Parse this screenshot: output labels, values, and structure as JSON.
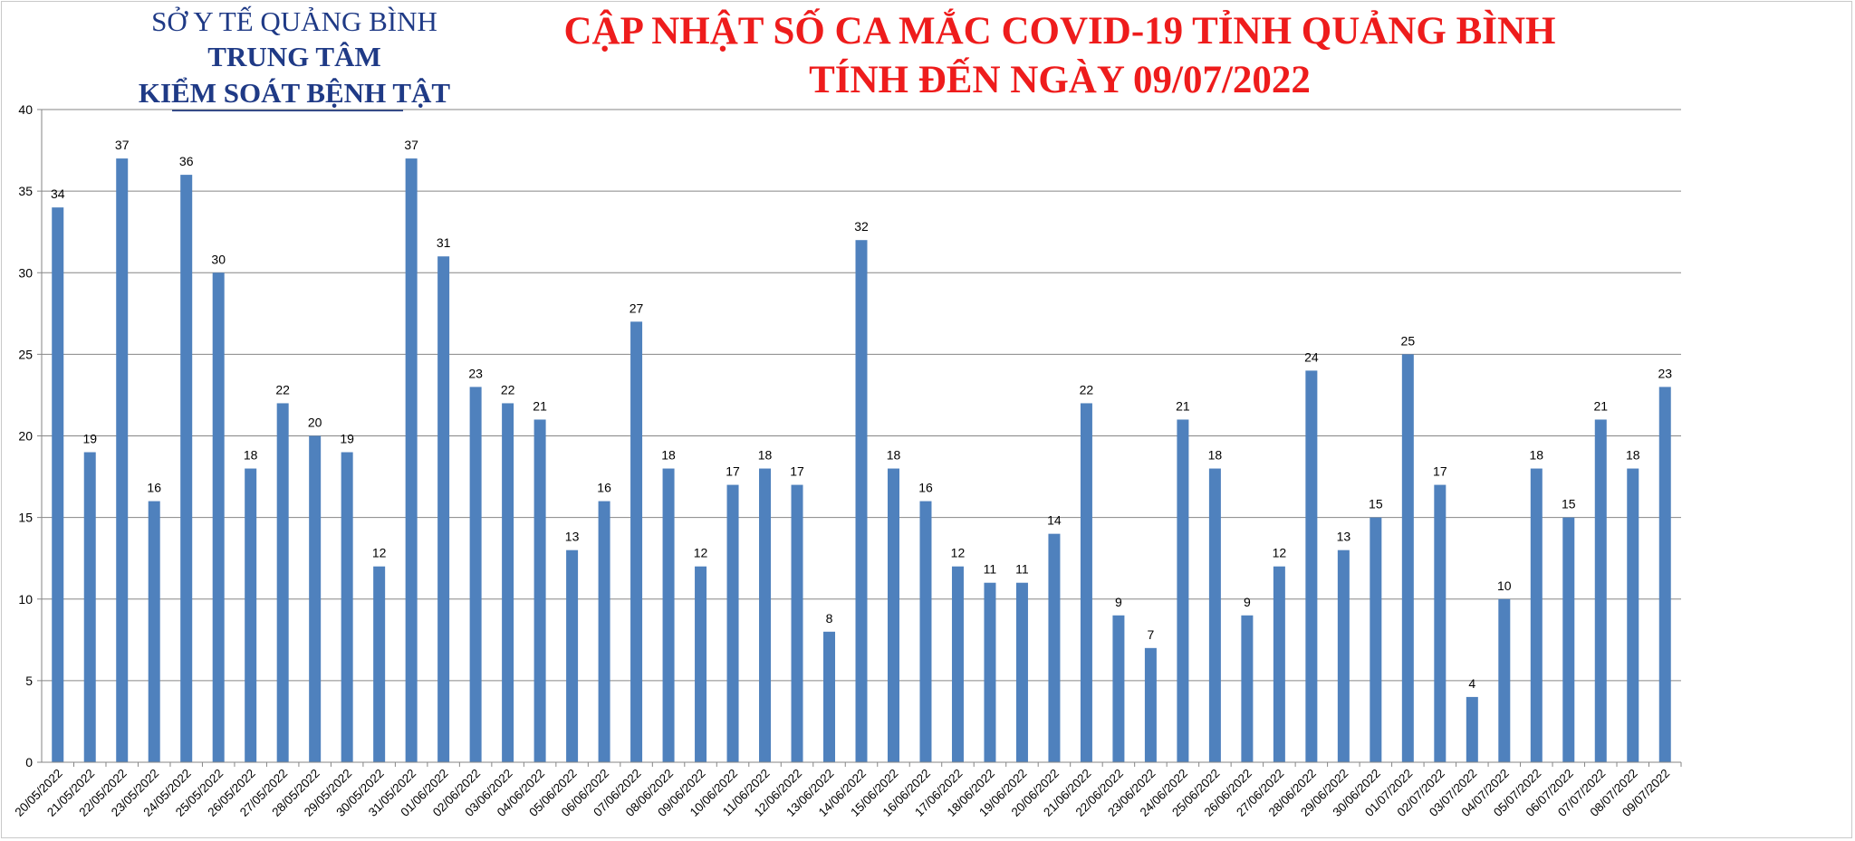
{
  "header": {
    "org_line1": "SỞ Y TẾ QUẢNG BÌNH",
    "org_line2": "TRUNG TÂM",
    "org_line3": "KIỂM SOÁT BỆNH TẬT",
    "title_line1": "CẬP NHẬT SỐ CA MẮC COVID-19 TỈNH QUẢNG BÌNH",
    "title_line2": "TÍNH ĐẾN NGÀY 09/07/2022"
  },
  "colors": {
    "bar": "#4f81bd",
    "title": "#ee1c1c",
    "org": "#1f3a86",
    "grid": "#868686"
  },
  "chart_data": {
    "type": "bar",
    "title": "CẬP NHẬT SỐ CA MẮC COVID-19 TỈNH QUẢNG BÌNH TÍNH ĐẾN NGÀY 09/07/2022",
    "xlabel": "",
    "ylabel": "",
    "ylim": [
      0,
      40
    ],
    "yticks": [
      0,
      5,
      10,
      15,
      20,
      25,
      30,
      35,
      40
    ],
    "grid": true,
    "legend": "none",
    "data_labels": true,
    "categories": [
      "20/05/2022",
      "21/05/2022",
      "22/05/2022",
      "23/05/2022",
      "24/05/2022",
      "25/05/2022",
      "26/05/2022",
      "27/05/2022",
      "28/05/2022",
      "29/05/2022",
      "30/05/2022",
      "31/05/2022",
      "01/06/2022",
      "02/06/2022",
      "03/06/2022",
      "04/06/2022",
      "05/06/2022",
      "06/06/2022",
      "07/06/2022",
      "08/06/2022",
      "09/06/2022",
      "10/06/2022",
      "11/06/2022",
      "12/06/2022",
      "13/06/2022",
      "14/06/2022",
      "15/06/2022",
      "16/06/2022",
      "17/06/2022",
      "18/06/2022",
      "19/06/2022",
      "20/06/2022",
      "21/06/2022",
      "22/06/2022",
      "23/06/2022",
      "24/06/2022",
      "25/06/2022",
      "26/06/2022",
      "27/06/2022",
      "28/06/2022",
      "29/06/2022",
      "30/06/2022",
      "01/07/2022",
      "02/07/2022",
      "03/07/2022",
      "04/07/2022",
      "05/07/2022",
      "06/07/2022",
      "07/07/2022",
      "08/07/2022",
      "09/07/2022"
    ],
    "values": [
      34,
      19,
      37,
      16,
      36,
      30,
      18,
      22,
      20,
      19,
      12,
      37,
      31,
      23,
      22,
      21,
      13,
      16,
      27,
      18,
      12,
      17,
      18,
      17,
      8,
      32,
      18,
      16,
      12,
      11,
      11,
      14,
      22,
      9,
      7,
      21,
      18,
      9,
      12,
      24,
      13,
      15,
      25,
      17,
      4,
      10,
      18,
      15,
      21,
      18,
      23
    ]
  }
}
